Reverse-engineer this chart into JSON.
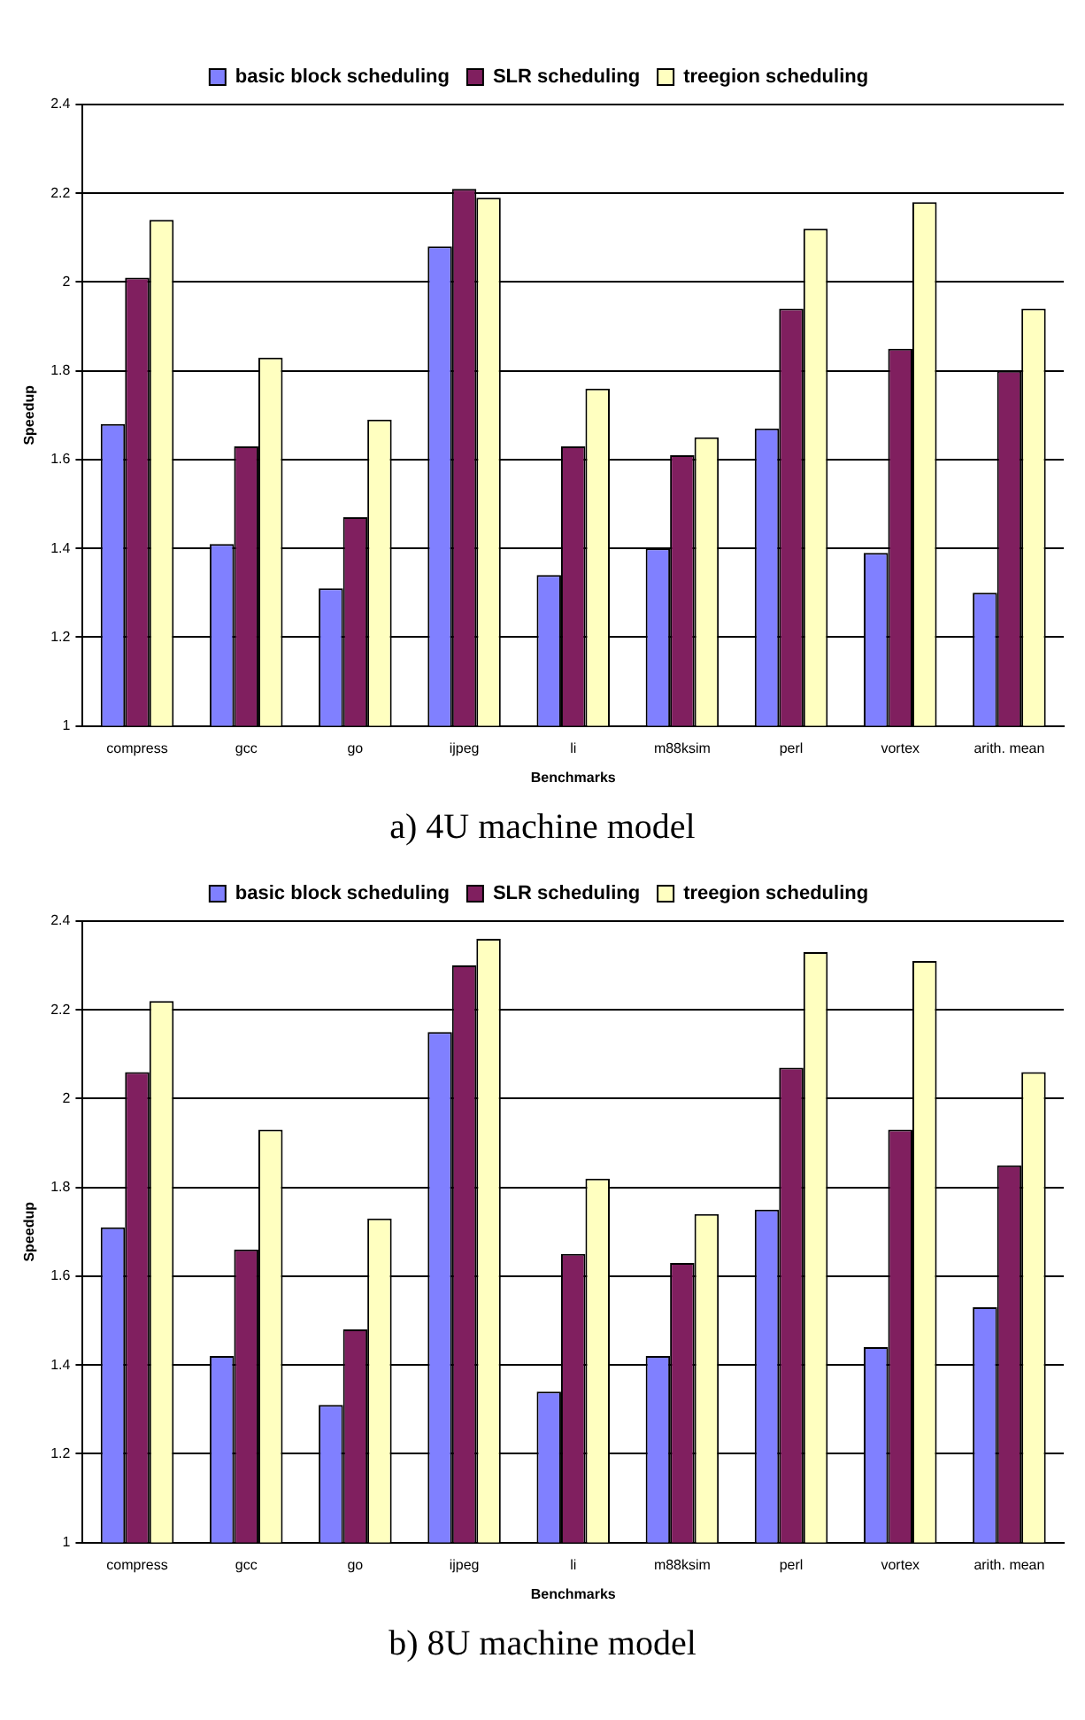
{
  "chart_data": [
    {
      "type": "bar",
      "xlabel": "Benchmarks",
      "ylabel": "Speedup",
      "annotations": [
        "a) 4U machine model"
      ],
      "categories": [
        "compress",
        "gcc",
        "go",
        "ijpeg",
        "li",
        "m88ksim",
        "perl",
        "vortex",
        "arith. mean"
      ],
      "series": [
        {
          "name": "basic block scheduling",
          "color": "#8080ff",
          "values": [
            1.68,
            1.41,
            1.31,
            2.08,
            1.34,
            1.4,
            1.67,
            1.39,
            1.3
          ]
        },
        {
          "name": "SLR scheduling",
          "color": "#801f5f",
          "values": [
            2.01,
            1.63,
            1.47,
            2.21,
            1.63,
            1.61,
            1.94,
            1.85,
            1.8
          ]
        },
        {
          "name": "treegion scheduling",
          "color": "#ffffc0",
          "values": [
            2.14,
            1.83,
            1.69,
            2.19,
            1.76,
            1.65,
            2.12,
            2.18,
            1.94
          ]
        }
      ],
      "ylim": [
        1,
        2.4
      ],
      "yticks": [
        1,
        1.2,
        1.4,
        1.6,
        1.8,
        2,
        2.2,
        2.4
      ],
      "grid": "y",
      "legend": "top"
    },
    {
      "type": "bar",
      "xlabel": "Benchmarks",
      "ylabel": "Speedup",
      "annotations": [
        "b) 8U machine model"
      ],
      "categories": [
        "compress",
        "gcc",
        "go",
        "ijpeg",
        "li",
        "m88ksim",
        "perl",
        "vortex",
        "arith. mean"
      ],
      "series": [
        {
          "name": "basic block scheduling",
          "color": "#8080ff",
          "values": [
            1.71,
            1.42,
            1.31,
            2.15,
            1.34,
            1.42,
            1.75,
            1.44,
            1.53
          ]
        },
        {
          "name": "SLR scheduling",
          "color": "#801f5f",
          "values": [
            2.06,
            1.66,
            1.48,
            2.3,
            1.65,
            1.63,
            2.07,
            1.93,
            1.85
          ]
        },
        {
          "name": "treegion scheduling",
          "color": "#ffffc0",
          "values": [
            2.22,
            1.93,
            1.73,
            2.36,
            1.82,
            1.74,
            2.33,
            2.31,
            2.06
          ]
        }
      ],
      "ylim": [
        1,
        2.4
      ],
      "yticks": [
        1,
        1.2,
        1.4,
        1.6,
        1.8,
        2,
        2.2,
        2.4
      ],
      "grid": "y",
      "legend": "top"
    }
  ]
}
